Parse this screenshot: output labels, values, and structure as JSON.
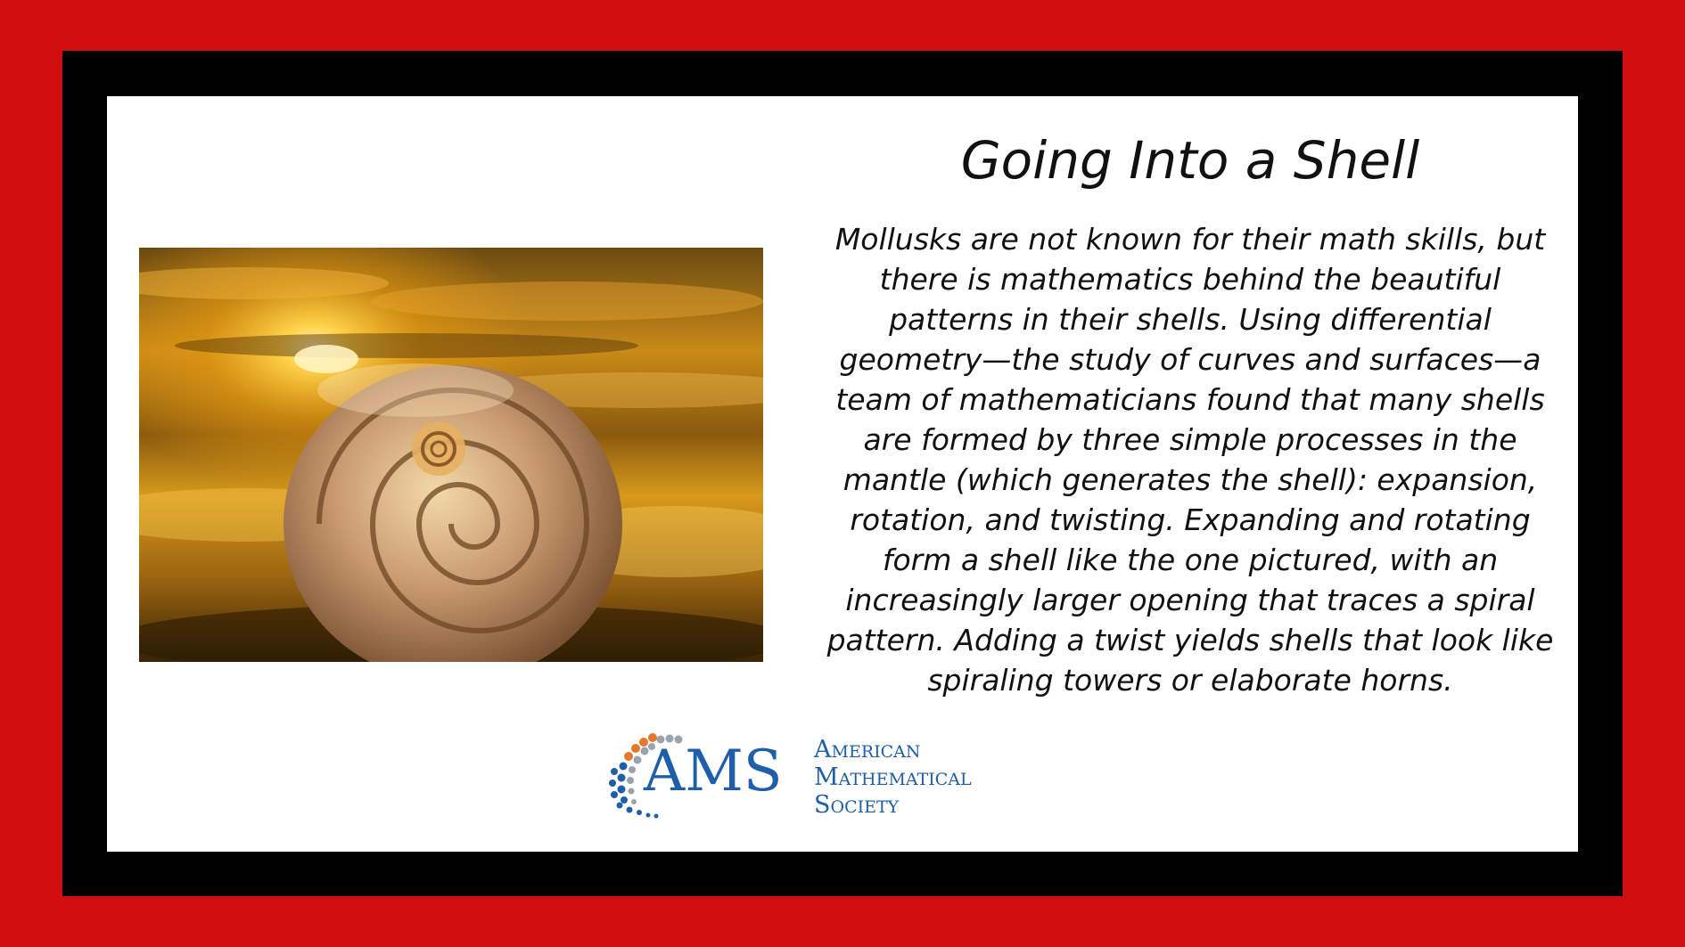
{
  "colors": {
    "outer_frame": "#d10e0e",
    "inner_frame": "#000000",
    "panel": "#ffffff",
    "text": "#111111",
    "logo_blue": "#1f5ea8",
    "logo_orange": "#e8762b",
    "logo_gray": "#9aa3ad"
  },
  "title": "Going Into a Shell",
  "body_lines": [
    "Mollusks are not known for their math skills, but",
    "there is mathematics behind the beautiful",
    "patterns in their shells. Using differential",
    "geometry—the study of curves and surfaces—a",
    "team of mathematicians found that many shells",
    "are formed by three simple processes in the",
    "mantle (which generates the shell): expansion,",
    "rotation, and twisting. Expanding and rotating",
    "form a shell like the one pictured, with an",
    "increasingly larger opening that traces a spiral",
    "pattern. Adding a twist yields shells that look like",
    "spiraling towers or elaborate horns."
  ],
  "logo": {
    "acronym": "AMS",
    "name_lines": [
      "American",
      "Mathematical",
      "Society"
    ]
  }
}
